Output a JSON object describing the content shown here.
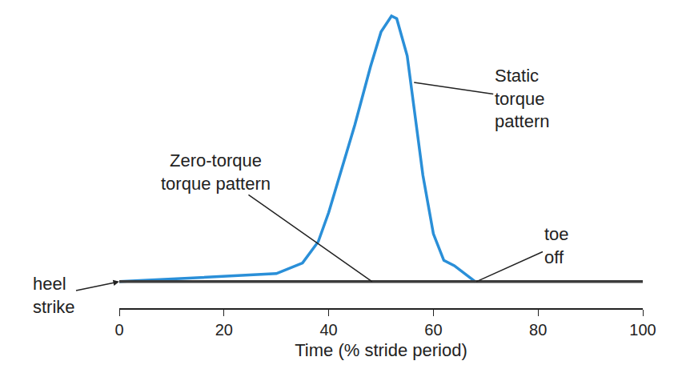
{
  "chart_data": {
    "type": "line",
    "x_label": "Time (% stride period)",
    "xlim": [
      0,
      100
    ],
    "xticks": [
      0,
      20,
      40,
      60,
      80,
      100
    ],
    "ylim": [
      -0.1,
      1.03
    ],
    "tick_labels": "x",
    "grid": false,
    "series": [
      {
        "color": "#2a8fd8",
        "x": [
          0,
          10,
          20,
          30,
          35,
          38,
          40,
          42,
          45,
          48,
          50,
          52,
          53,
          55,
          57,
          58,
          60,
          62,
          64,
          66,
          68
        ],
        "values": [
          0,
          0.01,
          0.02,
          0.03,
          0.07,
          0.15,
          0.26,
          0.39,
          0.59,
          0.81,
          0.94,
          1.0,
          0.99,
          0.85,
          0.56,
          0.4,
          0.18,
          0.08,
          0.06,
          0.03,
          0
        ]
      },
      {
        "color": "#3c3c3c",
        "x": [
          0,
          10,
          20,
          30,
          40,
          50,
          60,
          70,
          80,
          90,
          100
        ],
        "values": [
          0,
          0,
          0,
          0,
          0,
          0,
          0,
          0,
          0,
          0,
          0
        ]
      }
    ],
    "annotations": [
      {
        "text": [
          "Static",
          "torque",
          "pattern"
        ],
        "x": 56.3,
        "y": 0.75
      },
      {
        "text": [
          "Zero-torque",
          "torque pattern"
        ],
        "x": 48.3,
        "y": 0
      },
      {
        "text": [
          "toe",
          "off"
        ],
        "x": 68.2,
        "y": 0
      },
      {
        "text": [
          "heel",
          "strike"
        ],
        "x": 0,
        "y": 0
      }
    ]
  }
}
